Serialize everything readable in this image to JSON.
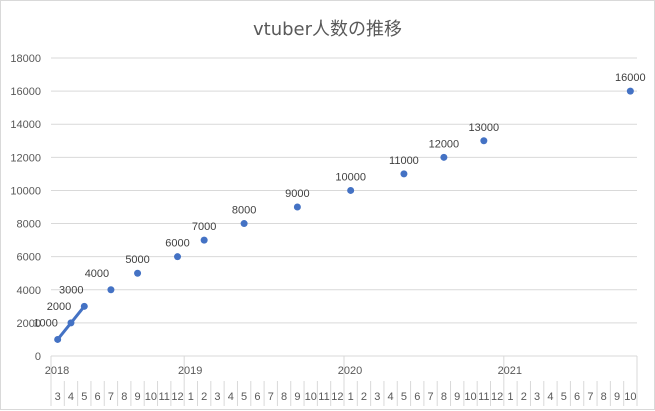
{
  "chart_data": {
    "type": "line",
    "title": "vtuber人数の推移",
    "xlabel": "",
    "ylabel": "",
    "ylim": [
      0,
      18000
    ],
    "yticks": [
      0,
      2000,
      4000,
      6000,
      8000,
      10000,
      12000,
      14000,
      16000,
      18000
    ],
    "grid": true,
    "legend": null,
    "x_years": [
      {
        "label": "2018",
        "start_index": 0
      },
      {
        "label": "2019",
        "start_index": 10
      },
      {
        "label": "2020",
        "start_index": 22
      },
      {
        "label": "2021",
        "start_index": 34
      }
    ],
    "categories": [
      "3",
      "4",
      "5",
      "6",
      "7",
      "8",
      "9",
      "10",
      "11",
      "12",
      "1",
      "2",
      "3",
      "4",
      "5",
      "6",
      "7",
      "8",
      "9",
      "10",
      "11",
      "12",
      "1",
      "2",
      "3",
      "4",
      "5",
      "6",
      "7",
      "8",
      "9",
      "10",
      "11",
      "12",
      "1",
      "2",
      "3",
      "4",
      "5",
      "6",
      "7",
      "8",
      "9",
      "10"
    ],
    "category_dates": [
      "2018-03",
      "2018-04",
      "2018-05",
      "2018-06",
      "2018-07",
      "2018-08",
      "2018-09",
      "2018-10",
      "2018-11",
      "2018-12",
      "2019-01",
      "2019-02",
      "2019-03",
      "2019-04",
      "2019-05",
      "2019-06",
      "2019-07",
      "2019-08",
      "2019-09",
      "2019-10",
      "2019-11",
      "2019-12",
      "2020-01",
      "2020-02",
      "2020-03",
      "2020-04",
      "2020-05",
      "2020-06",
      "2020-07",
      "2020-08",
      "2020-09",
      "2020-10",
      "2020-11",
      "2020-12",
      "2021-01",
      "2021-02",
      "2021-03",
      "2021-04",
      "2021-05",
      "2021-06",
      "2021-07",
      "2021-08",
      "2021-09",
      "2021-10"
    ],
    "series": [
      {
        "name": "vtuber人数",
        "color": "#4472C4",
        "points": [
          {
            "date": "2018-03",
            "index": 0,
            "value": 1000
          },
          {
            "date": "2018-04",
            "index": 1,
            "value": 2000
          },
          {
            "date": "2018-05",
            "index": 2,
            "value": 3000
          },
          {
            "date": "2018-07",
            "index": 4,
            "value": 4000
          },
          {
            "date": "2018-09",
            "index": 6,
            "value": 5000
          },
          {
            "date": "2018-12",
            "index": 9,
            "value": 6000
          },
          {
            "date": "2019-02",
            "index": 11,
            "value": 7000
          },
          {
            "date": "2019-05",
            "index": 14,
            "value": 8000
          },
          {
            "date": "2019-09",
            "index": 18,
            "value": 9000
          },
          {
            "date": "2020-01",
            "index": 22,
            "value": 10000
          },
          {
            "date": "2020-05",
            "index": 26,
            "value": 11000
          },
          {
            "date": "2020-08",
            "index": 29,
            "value": 12000
          },
          {
            "date": "2020-11",
            "index": 32,
            "value": 13000
          },
          {
            "date": "2021-10",
            "index": 43,
            "value": 16000
          }
        ]
      }
    ]
  },
  "colors": {
    "series": "#4472C4",
    "grid": "#d9d9d9",
    "axis_text": "#595959",
    "title": "#595959"
  }
}
